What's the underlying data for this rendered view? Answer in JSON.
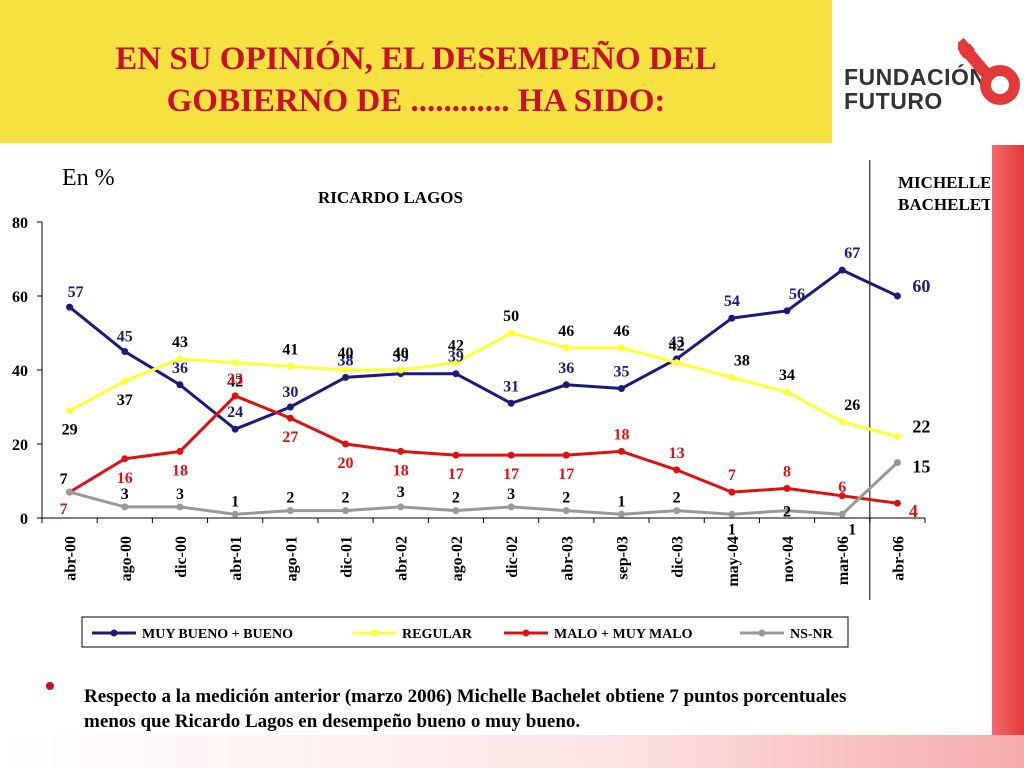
{
  "header": {
    "title_line1": "EN SU OPINIÓN, EL DESEMPEÑO DEL",
    "title_line2": "GOBIERNO DE ............ HA SIDO:"
  },
  "logo": {
    "line1": "FUNDACIÓN",
    "line2": "FUTURO"
  },
  "colors": {
    "title_bg": "#f5e13f",
    "title_text": "#c8102e",
    "muy_bueno": "#1a1a7e",
    "regular": "#ffff33",
    "malo": "#e01010",
    "nsnr": "#999999"
  },
  "chart_data": {
    "type": "line",
    "unit_label": "En %",
    "section_labels": [
      "RICARDO LAGOS",
      "MICHELLE BACHELET"
    ],
    "categories": [
      "abr-00",
      "ago-00",
      "dic-00",
      "abr-01",
      "ago-01",
      "dic-01",
      "abr-02",
      "ago-02",
      "dic-02",
      "abr-03",
      "sep-03",
      "dic-03",
      "may-04",
      "nov-04",
      "mar-06",
      "abr-06"
    ],
    "ylim": [
      0,
      80
    ],
    "yticks": [
      0,
      20,
      40,
      60,
      80
    ],
    "grid": false,
    "legend_position": "bottom",
    "series": [
      {
        "name": "MUY BUENO + BUENO",
        "values": [
          57,
          45,
          36,
          24,
          30,
          38,
          39,
          39,
          31,
          36,
          35,
          43,
          54,
          56,
          67,
          60
        ]
      },
      {
        "name": "REGULAR",
        "values": [
          29,
          37,
          43,
          42,
          41,
          40,
          40,
          42,
          50,
          46,
          46,
          42,
          38,
          34,
          26,
          22
        ]
      },
      {
        "name": "MALO + MUY MALO",
        "values": [
          7,
          16,
          18,
          33,
          27,
          20,
          18,
          17,
          17,
          17,
          18,
          13,
          7,
          8,
          6,
          4
        ]
      },
      {
        "name": "NS-NR",
        "values": [
          7,
          3,
          3,
          1,
          2,
          2,
          3,
          2,
          3,
          2,
          1,
          2,
          1,
          2,
          1,
          15
        ]
      }
    ]
  },
  "note": {
    "text": "Respecto a la medición anterior (marzo 2006) Michelle Bachelet obtiene 7 puntos porcentuales menos que Ricardo Lagos en desempeño bueno o muy bueno."
  }
}
